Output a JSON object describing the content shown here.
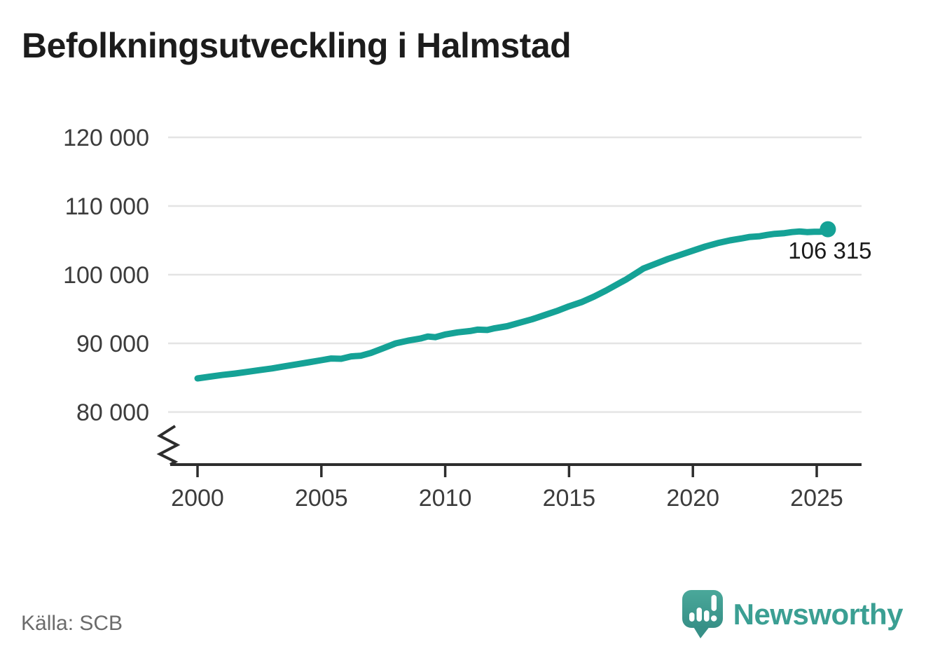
{
  "title": "Befolkningsutveckling i Halmstad",
  "source": "Källa: SCB",
  "branding": {
    "name": "Newsworthy",
    "icon": "newsworthy-speech-bubble-bar-chart-icon",
    "text_color": "#3b9f93",
    "icon_color_top": "#4aa89a",
    "icon_color_bottom": "#379087"
  },
  "colors": {
    "background": "#ffffff",
    "line": "#15a296",
    "grid": "#e4e4e4",
    "axis": "#2d2d2d",
    "tick_label": "#3c3c3c",
    "title": "#1c1c1c",
    "source": "#6b6b6b",
    "end_label": "#1a1a1a"
  },
  "chart_data": {
    "type": "line",
    "title": "Befolkningsutveckling i Halmstad",
    "xlabel": "",
    "ylabel": "",
    "grid": "horizontal",
    "legend": "none",
    "axis_break_bottom_left": true,
    "xlim": [
      1998.9,
      2026.8
    ],
    "ylim_shown": [
      80000,
      120000
    ],
    "x_ticks": {
      "values": [
        2000,
        2005,
        2010,
        2015,
        2020,
        2025
      ],
      "labels": [
        "2000",
        "2005",
        "2010",
        "2015",
        "2020",
        "2025"
      ]
    },
    "y_ticks": {
      "values": [
        80000,
        90000,
        100000,
        110000,
        120000
      ],
      "labels": [
        "80 000",
        "90 000",
        "100 000",
        "110 000",
        "120 000"
      ]
    },
    "end_label": "106 315",
    "end_value": 106315,
    "x": [
      2000,
      2000.5,
      2001,
      2001.5,
      2002,
      2002.5,
      2003,
      2003.5,
      2004,
      2004.5,
      2005,
      2005.4,
      2005.8,
      2006.2,
      2006.6,
      2007,
      2007.5,
      2008,
      2008.5,
      2009,
      2009.3,
      2009.6,
      2010,
      2010.5,
      2011,
      2011.3,
      2011.7,
      2012,
      2012.5,
      2013,
      2013.5,
      2014,
      2014.5,
      2015,
      2015.5,
      2016,
      2016.5,
      2017,
      2017.3,
      2017.7,
      2018,
      2018.5,
      2019,
      2019.5,
      2020,
      2020.5,
      2021,
      2021.5,
      2022,
      2022.3,
      2022.7,
      2023,
      2023.3,
      2023.7,
      2024,
      2024.3,
      2024.6,
      2024.9,
      2025.1,
      2025.45
    ],
    "y": [
      84900,
      85150,
      85400,
      85600,
      85850,
      86100,
      86350,
      86650,
      86950,
      87250,
      87550,
      87800,
      87750,
      88100,
      88200,
      88600,
      89300,
      90000,
      90400,
      90700,
      91000,
      90900,
      91300,
      91600,
      91800,
      92000,
      91950,
      92200,
      92500,
      93000,
      93500,
      94100,
      94700,
      95400,
      96000,
      96800,
      97700,
      98700,
      99300,
      100200,
      100900,
      101600,
      102300,
      102900,
      103500,
      104100,
      104600,
      105000,
      105300,
      105500,
      105600,
      105800,
      105950,
      106050,
      106200,
      106300,
      106200,
      106250,
      106250,
      106315
    ]
  }
}
